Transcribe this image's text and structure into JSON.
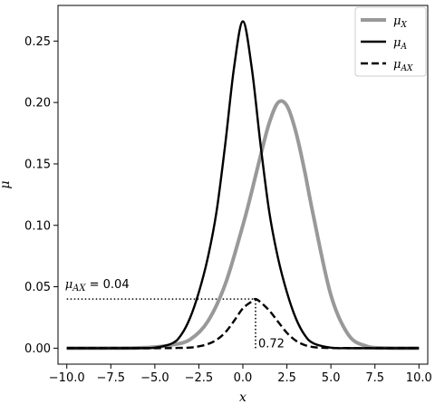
{
  "chart_data": {
    "type": "line",
    "xlabel": "x",
    "ylabel": "μ",
    "xlim": [
      -10.5,
      10.5
    ],
    "ylim": [
      -0.013,
      0.279
    ],
    "xticks": [
      -10.0,
      -7.5,
      -5.0,
      -2.5,
      0.0,
      2.5,
      5.0,
      7.5,
      10.0
    ],
    "xtick_labels": [
      "−10.0",
      "−7.5",
      "−5.0",
      "−2.5",
      "0.0",
      "2.5",
      "5.0",
      "7.5",
      "10.0"
    ],
    "yticks": [
      0.0,
      0.05,
      0.1,
      0.15,
      0.2,
      0.25
    ],
    "ytick_labels": [
      "0.00",
      "0.05",
      "0.10",
      "0.15",
      "0.20",
      "0.25"
    ],
    "grid": false,
    "legend_position": "top-right",
    "series": [
      {
        "name": "μX",
        "name_main": "μ",
        "name_sub": "X",
        "style": "solid",
        "color": "#999999",
        "width": 4,
        "x": [
          -10,
          -8,
          -6,
          -5,
          -4,
          -3,
          -2,
          -1,
          0,
          0.5,
          1,
          1.5,
          2,
          2.5,
          3,
          3.5,
          4,
          5,
          6,
          7,
          8,
          10
        ],
        "y": [
          0.0,
          0.0,
          0.0002,
          0.0009,
          0.0027,
          0.007,
          0.0216,
          0.0521,
          0.1,
          0.1274,
          0.1565,
          0.1834,
          0.2,
          0.1974,
          0.1766,
          0.1448,
          0.1082,
          0.0432,
          0.0108,
          0.0017,
          0.0002,
          0.0
        ]
      },
      {
        "name": "μA",
        "name_main": "μ",
        "name_sub": "A",
        "style": "solid",
        "color": "#000000",
        "width": 2.4,
        "x": [
          -10,
          -6,
          -5,
          -4,
          -3.5,
          -3,
          -2.5,
          -2,
          -1.5,
          -1,
          -0.5,
          0,
          0.5,
          1,
          1.5,
          2,
          2.5,
          3,
          3.5,
          4,
          5,
          6,
          10
        ],
        "y": [
          0.0,
          0.0,
          0.0004,
          0.004,
          0.0109,
          0.0246,
          0.0456,
          0.0731,
          0.1108,
          0.1662,
          0.2286,
          0.266,
          0.2286,
          0.1662,
          0.1108,
          0.0731,
          0.0456,
          0.0246,
          0.0109,
          0.004,
          0.0004,
          0.0,
          0.0
        ]
      },
      {
        "name": "μAX",
        "name_main": "μ",
        "name_sub": "AX",
        "style": "dashed",
        "color": "#000000",
        "width": 2.4,
        "x": [
          -10,
          -5,
          -4,
          -3,
          -2.5,
          -2,
          -1.5,
          -1,
          -0.5,
          0,
          0.5,
          0.72,
          1,
          1.5,
          2,
          2.5,
          3,
          3.5,
          4,
          4.5,
          5,
          6,
          10
        ],
        "y": [
          0.0,
          0.0,
          0.0001,
          0.0005,
          0.0015,
          0.0033,
          0.0067,
          0.0128,
          0.0222,
          0.0324,
          0.038,
          0.04,
          0.0375,
          0.0306,
          0.0215,
          0.0125,
          0.0062,
          0.0026,
          0.0009,
          0.0003,
          0.0001,
          0.0,
          0.0
        ]
      }
    ],
    "annotations": [
      {
        "label_main": "μ",
        "label_sub": "AX",
        "label_rest": " = 0.04",
        "x": -10,
        "y": 0.04
      },
      {
        "text": "0.72",
        "x": 0.72,
        "y": 0.04
      }
    ],
    "guide_lines": {
      "horizontal": {
        "from_x": -10,
        "to_x": 0.72,
        "y": 0.04
      },
      "vertical": {
        "x": 0.72,
        "from_y": 0.0,
        "to_y": 0.04
      }
    }
  }
}
